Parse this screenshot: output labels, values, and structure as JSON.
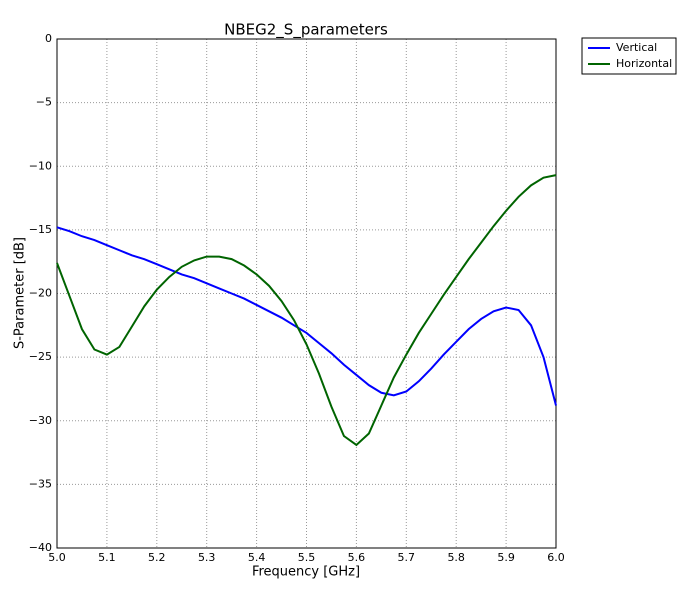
{
  "chart_data": {
    "type": "line",
    "title": "NBEG2_S_parameters",
    "x_label": "Frequency [GHz]",
    "y_label": "S-Parameter [dB]",
    "x": [
      5.0,
      5.025,
      5.05,
      5.075,
      5.1,
      5.125,
      5.15,
      5.175,
      5.2,
      5.225,
      5.25,
      5.275,
      5.3,
      5.325,
      5.35,
      5.375,
      5.4,
      5.425,
      5.45,
      5.475,
      5.5,
      5.525,
      5.55,
      5.575,
      5.6,
      5.625,
      5.65,
      5.675,
      5.7,
      5.725,
      5.75,
      5.775,
      5.8,
      5.825,
      5.85,
      5.875,
      5.9,
      5.925,
      5.95,
      5.975,
      6.0
    ],
    "series": [
      {
        "name": "Vertical",
        "color": "#0000ff",
        "values": [
          -14.8,
          -15.1,
          -15.5,
          -15.8,
          -16.2,
          -16.6,
          -17.0,
          -17.3,
          -17.7,
          -18.1,
          -18.5,
          -18.8,
          -19.2,
          -19.6,
          -20.0,
          -20.4,
          -20.9,
          -21.4,
          -21.9,
          -22.5,
          -23.1,
          -23.9,
          -24.7,
          -25.6,
          -26.4,
          -27.2,
          -27.8,
          -28.0,
          -27.7,
          -26.9,
          -25.9,
          -24.8,
          -23.8,
          -22.8,
          -22.0,
          -21.4,
          -21.1,
          -21.3,
          -22.5,
          -25.0,
          -28.8
        ]
      },
      {
        "name": "Horizontal",
        "color": "#006400",
        "values": [
          -17.6,
          -20.2,
          -22.8,
          -24.4,
          -24.8,
          -24.2,
          -22.6,
          -21.0,
          -19.7,
          -18.7,
          -17.9,
          -17.4,
          -17.1,
          -17.1,
          -17.3,
          -17.8,
          -18.5,
          -19.4,
          -20.6,
          -22.1,
          -24.0,
          -26.3,
          -28.9,
          -31.2,
          -31.9,
          -31.0,
          -28.8,
          -26.6,
          -24.8,
          -23.1,
          -21.6,
          -20.1,
          -18.7,
          -17.3,
          -16.0,
          -14.7,
          -13.5,
          -12.4,
          -11.5,
          -10.9,
          -10.7
        ]
      }
    ],
    "xlim": [
      5.0,
      6.0
    ],
    "xticks": [
      {
        "value": 5.0,
        "label": "5.0"
      },
      5.1,
      5.2,
      5.3,
      5.4,
      5.5,
      5.6,
      5.7,
      5.8,
      5.9,
      {
        "value": 6.0,
        "label": "6.0"
      }
    ],
    "ylim": [
      -40,
      0
    ],
    "yticks": [
      {
        "value": -40,
        "label": "−40"
      },
      {
        "value": -35,
        "label": "−35"
      },
      {
        "value": -30,
        "label": "−30"
      },
      {
        "value": -25,
        "label": "−25"
      },
      {
        "value": -20,
        "label": "−20"
      },
      {
        "value": -15,
        "label": "−15"
      },
      {
        "value": -10,
        "label": "−10"
      },
      {
        "value": -5,
        "label": "−5"
      },
      0
    ],
    "grid": true,
    "legend": "outside-upper-right"
  }
}
